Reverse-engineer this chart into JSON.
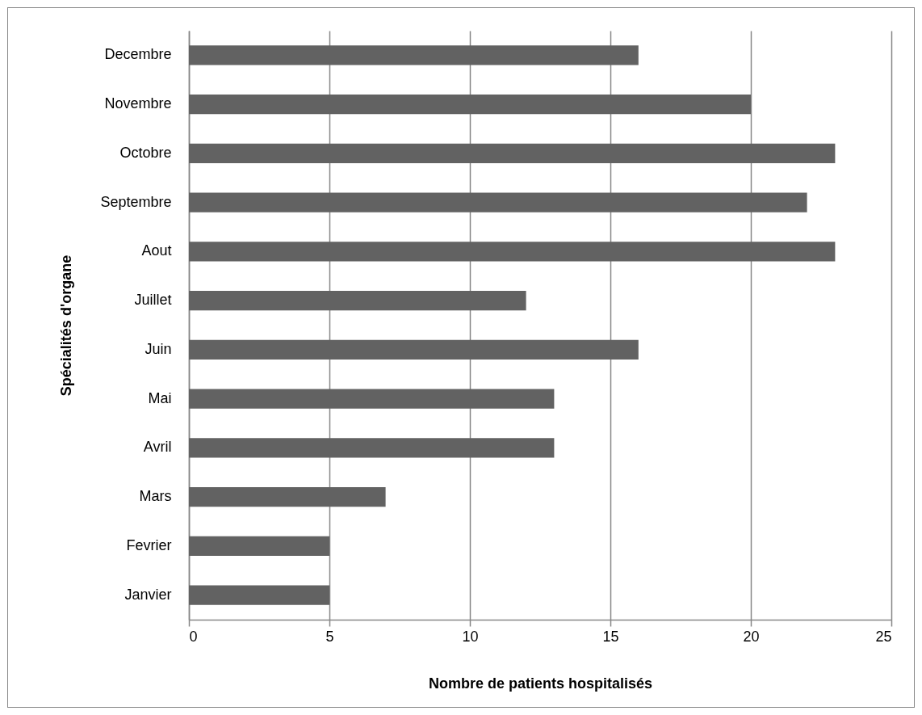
{
  "chart_data": {
    "type": "bar",
    "orientation": "horizontal",
    "xlabel": "Nombre de patients hospitalisés",
    "ylabel": "Spécialités d'organe",
    "categories": [
      "Decembre",
      "Novembre",
      "Octobre",
      "Septembre",
      "Aout",
      "Juillet",
      "Juin",
      "Mai",
      "Avril",
      "Mars",
      "Fevrier",
      "Janvier"
    ],
    "values": [
      16,
      20,
      23,
      22,
      23,
      12,
      16,
      13,
      13,
      7,
      5,
      5
    ],
    "color": "#626262",
    "xlim": [
      0,
      25
    ],
    "xticks": [
      0,
      5,
      10,
      15,
      20,
      25
    ],
    "grid": "x"
  }
}
